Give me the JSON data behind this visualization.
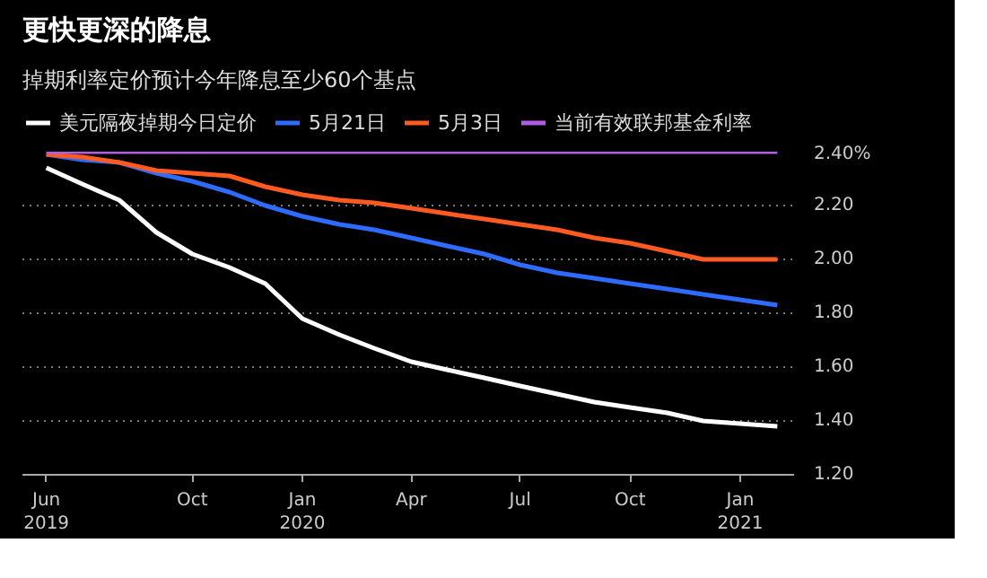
{
  "chart_data": {
    "type": "line",
    "title": "更快更深的降息",
    "subtitle": "掉期利率定价预计今年降息至少60个基点",
    "x": [
      "2019-06",
      "2019-07",
      "2019-08",
      "2019-09",
      "2019-10",
      "2019-11",
      "2019-12",
      "2020-01",
      "2020-02",
      "2020-03",
      "2020-04",
      "2020-05",
      "2020-06",
      "2020-07",
      "2020-08",
      "2020-09",
      "2020-10",
      "2020-11",
      "2020-12",
      "2021-01",
      "2021-02"
    ],
    "series": [
      {
        "name": "美元隔夜掉期今日定价",
        "color": "#ffffff",
        "values": [
          2.34,
          2.28,
          2.22,
          2.1,
          2.02,
          1.97,
          1.91,
          1.78,
          1.72,
          1.67,
          1.62,
          1.59,
          1.56,
          1.53,
          1.5,
          1.47,
          1.45,
          1.43,
          1.4,
          1.39,
          1.38
        ]
      },
      {
        "name": "5月21日",
        "color": "#2e6bff",
        "values": [
          2.39,
          2.37,
          2.36,
          2.32,
          2.29,
          2.25,
          2.2,
          2.16,
          2.13,
          2.11,
          2.08,
          2.05,
          2.02,
          1.98,
          1.95,
          1.93,
          1.91,
          1.89,
          1.87,
          1.85,
          1.83
        ]
      },
      {
        "name": "5月3日",
        "color": "#ff5a1f",
        "values": [
          2.39,
          2.38,
          2.36,
          2.33,
          2.32,
          2.31,
          2.27,
          2.24,
          2.22,
          2.21,
          2.19,
          2.17,
          2.15,
          2.13,
          2.11,
          2.08,
          2.06,
          2.03,
          2.0,
          2.0,
          2.0
        ]
      },
      {
        "name": "当前有效联邦基金利率",
        "color": "#b05ce6",
        "values": [
          2.4,
          2.4,
          2.4,
          2.4,
          2.4,
          2.4,
          2.4,
          2.4,
          2.4,
          2.4,
          2.4,
          2.4,
          2.4,
          2.4,
          2.4,
          2.4,
          2.4,
          2.4,
          2.4,
          2.4,
          2.4
        ]
      }
    ],
    "xlim": [
      "2019-05-12",
      "2021-02-15"
    ],
    "xticks": [
      {
        "value": "2019-06",
        "label": "Jun\n2019"
      },
      {
        "value": "2019-10",
        "label": "Oct"
      },
      {
        "value": "2020-01",
        "label": "Jan\n2020"
      },
      {
        "value": "2020-04",
        "label": "Apr"
      },
      {
        "value": "2020-07",
        "label": "Jul"
      },
      {
        "value": "2020-10",
        "label": "Oct"
      },
      {
        "value": "2021-01",
        "label": "Jan\n2021"
      }
    ],
    "ylim": [
      1.2,
      2.4
    ],
    "yticks": [
      {
        "value": 1.2,
        "label": "1.20"
      },
      {
        "value": 1.4,
        "label": "1.40"
      },
      {
        "value": 1.6,
        "label": "1.60"
      },
      {
        "value": 1.8,
        "label": "1.80"
      },
      {
        "value": 2.0,
        "label": "2.00"
      },
      {
        "value": 2.2,
        "label": "2.20"
      },
      {
        "value": 2.4,
        "label": "2.40%"
      }
    ],
    "grid": "y",
    "legend": "top",
    "line_style": "solid",
    "marker": "none"
  }
}
